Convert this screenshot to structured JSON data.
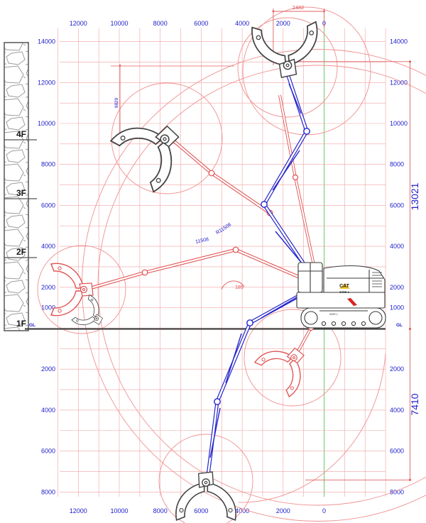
{
  "diagram": {
    "type": "excavator-working-range-diagram",
    "gl_label": "GL",
    "axes": {
      "top": [
        "12000",
        "10000",
        "8000",
        "6000",
        "4000",
        "2000",
        "0"
      ],
      "bottom": [
        "12000",
        "10000",
        "8000",
        "6000",
        "4000",
        "2000",
        "0"
      ],
      "left_above_gl": [
        "14000",
        "12000",
        "10000",
        "8000",
        "6000",
        "4000",
        "2000",
        "1000"
      ],
      "left_below_gl": [
        "2000",
        "4000",
        "6000",
        "8000"
      ],
      "right_above_gl": [
        "14000",
        "12000",
        "10000",
        "8000",
        "6000",
        "4000",
        "2000",
        "1000"
      ],
      "right_below_gl": [
        "2000",
        "4000",
        "6000",
        "8000"
      ]
    },
    "floors": [
      "4F",
      "3F",
      "2F",
      "1F"
    ],
    "dimensions": {
      "top_offset": "2482",
      "max_pin_height": "13021",
      "max_depth": "7410",
      "working_radius": "R11508",
      "working_radius_2": "11508",
      "angle": "185",
      "side_dim": "9829"
    },
    "machine": {
      "brand": "CAT",
      "model": "320E L"
    },
    "colors": {
      "grid": "#f2a2a2",
      "axis_text": "#2020cc",
      "blue_machine": "#2424cc",
      "red_outline": "#e05050",
      "arc_red": "#f09090",
      "dark": "#3a3a3a",
      "zero_line": "#6ec86e",
      "logo_yellow": "#f2c42a"
    }
  }
}
